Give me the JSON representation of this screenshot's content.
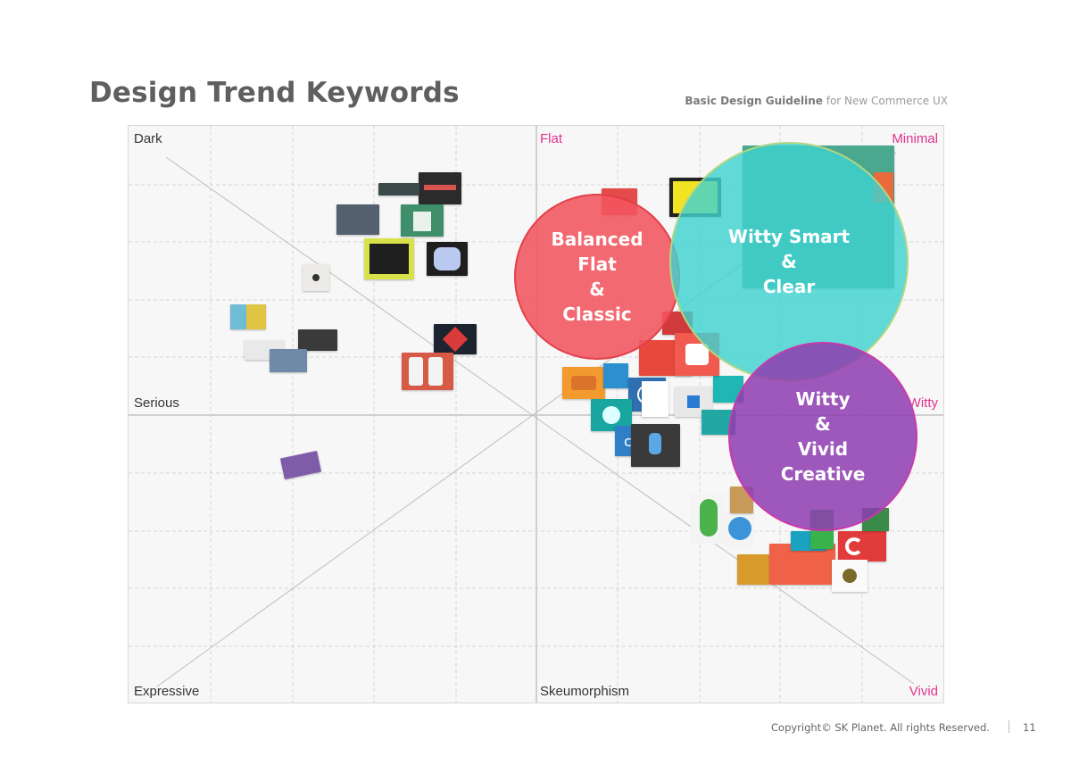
{
  "header": {
    "title": "Design Trend Keywords",
    "subtitle_bold": "Basic Design Guideline",
    "subtitle_rest": " for New Commerce UX"
  },
  "axes": {
    "top_left": "Dark",
    "top_center": "Flat",
    "top_right": "Minimal",
    "middle_left": "Serious",
    "middle_right": "Witty",
    "bottom_left": "Expressive",
    "bottom_center": "Skeumorphism",
    "bottom_right": "Vivid"
  },
  "clusters": [
    {
      "label": "Balanced\nFlat\n&\nClassic",
      "color": "#f2555e"
    },
    {
      "label": "Witty Smart\n&\nClear",
      "color": "#3fd2cf"
    },
    {
      "label": "Witty\n&\nVivid\nCreative",
      "color": "#8e3cb0"
    }
  ],
  "colors": {
    "accent_pink": "#e0338f",
    "grid_line": "#d6d6d6",
    "diagonal_line": "#bdbdbd"
  },
  "footer": {
    "copyright": "Copyright© SK Planet. All rights Reserved.",
    "page_number": "11"
  }
}
